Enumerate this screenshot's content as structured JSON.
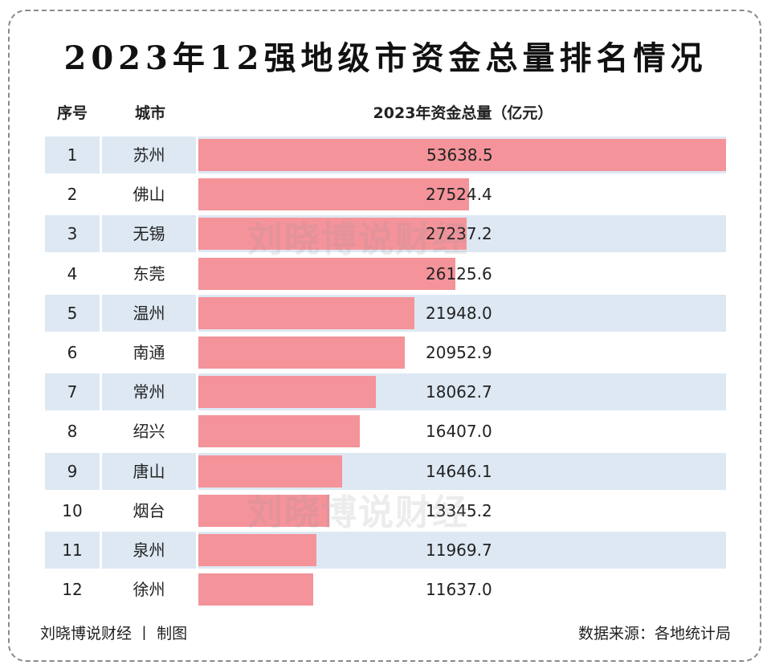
{
  "title": "2023年12强地级市资金总量排名情况",
  "headers": {
    "rank": "序号",
    "city": "城市",
    "value": "2023年资金总量（亿元）"
  },
  "chart_data": {
    "type": "bar",
    "orientation": "horizontal",
    "categories": [
      "苏州",
      "佛山",
      "无锡",
      "东莞",
      "温州",
      "南通",
      "常州",
      "绍兴",
      "唐山",
      "烟台",
      "泉州",
      "徐州"
    ],
    "ranks": [
      "1",
      "2",
      "3",
      "4",
      "5",
      "6",
      "7",
      "8",
      "9",
      "10",
      "11",
      "12"
    ],
    "values": [
      53638.5,
      27524.4,
      27237.2,
      26125.6,
      21948.0,
      20952.9,
      18062.7,
      16407.0,
      14646.1,
      13345.2,
      11969.7,
      11637.0
    ],
    "value_labels": [
      "53638.5",
      "27524.4",
      "27237.2",
      "26125.6",
      "21948.0",
      "20952.9",
      "18062.7",
      "16407.0",
      "14646.1",
      "13345.2",
      "11969.7",
      "11637.0"
    ],
    "bar_color": "#f4939a",
    "row_shade_color": "#dde8f3"
  },
  "watermark": "刘晓博说财经",
  "footer": {
    "left": "刘晓博说财经 丨 制图",
    "right": "数据来源：各地统计局"
  }
}
